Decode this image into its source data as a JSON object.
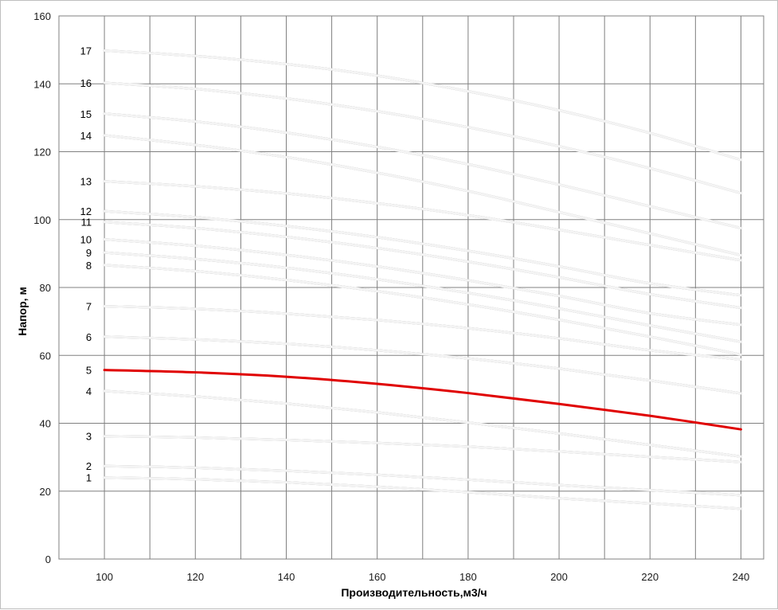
{
  "chart_data": {
    "type": "line",
    "title": "",
    "xlabel": "Производительность,м3/ч",
    "ylabel": "Напор, м",
    "xlim": [
      90,
      245
    ],
    "ylim": [
      0,
      160
    ],
    "x_ticks": [
      100,
      120,
      140,
      160,
      180,
      200,
      220,
      240
    ],
    "y_ticks": [
      0,
      20,
      40,
      60,
      80,
      100,
      120,
      140,
      160
    ],
    "grid": true,
    "highlight_color": "#e00000",
    "curve_color": "#c8c8c8",
    "x": [
      100,
      120,
      140,
      160,
      180,
      200,
      220,
      240
    ],
    "series": [
      {
        "name": "1",
        "values": [
          24.0,
          23.5,
          22.6,
          21.3,
          19.7,
          17.9,
          16.4,
          14.8
        ]
      },
      {
        "name": "2",
        "values": [
          27.4,
          26.9,
          26.0,
          24.8,
          23.4,
          21.8,
          20.3,
          18.8
        ]
      },
      {
        "name": "3",
        "values": [
          36.2,
          35.8,
          35.1,
          34.2,
          33.1,
          31.7,
          30.1,
          28.6
        ]
      },
      {
        "name": "4",
        "values": [
          49.5,
          47.9,
          45.8,
          43.2,
          40.2,
          37.0,
          33.6,
          30.2
        ]
      },
      {
        "name": "5",
        "values": [
          55.7,
          55.0,
          53.7,
          51.6,
          48.9,
          45.7,
          42.2,
          38.2
        ],
        "highlight": true
      },
      {
        "name": "6",
        "values": [
          65.5,
          64.7,
          63.4,
          61.5,
          59.1,
          56.1,
          52.6,
          48.8
        ]
      },
      {
        "name": "7",
        "values": [
          74.5,
          73.7,
          72.3,
          70.4,
          68.0,
          65.0,
          61.5,
          58.8
        ]
      },
      {
        "name": "8",
        "values": [
          86.6,
          84.8,
          82.2,
          78.9,
          75.0,
          70.5,
          65.5,
          60.2
        ]
      },
      {
        "name": "9",
        "values": [
          90.3,
          88.4,
          85.8,
          82.4,
          78.4,
          73.8,
          68.8,
          64.0
        ]
      },
      {
        "name": "10",
        "values": [
          94.2,
          92.3,
          89.6,
          86.2,
          82.1,
          77.5,
          72.4,
          69.0
        ]
      },
      {
        "name": "11",
        "values": [
          99.3,
          97.5,
          94.9,
          91.6,
          87.6,
          83.0,
          78.0,
          74.0
        ]
      },
      {
        "name": "12",
        "values": [
          102.5,
          100.7,
          98.1,
          94.8,
          90.8,
          86.2,
          81.2,
          77.7
        ]
      },
      {
        "name": "13",
        "values": [
          111.3,
          109.8,
          107.7,
          104.8,
          101.3,
          97.0,
          92.5,
          88.0
        ]
      },
      {
        "name": "14",
        "values": [
          124.8,
          122.0,
          118.4,
          113.8,
          108.4,
          102.2,
          95.9,
          89.5
        ]
      },
      {
        "name": "15",
        "values": [
          131.2,
          128.9,
          125.6,
          121.4,
          116.3,
          110.3,
          103.9,
          97.5
        ]
      },
      {
        "name": "16",
        "values": [
          140.3,
          138.5,
          135.7,
          131.9,
          127.2,
          121.6,
          115.1,
          107.8
        ]
      },
      {
        "name": "17",
        "values": [
          149.8,
          148.2,
          145.8,
          142.4,
          137.8,
          132.2,
          125.5,
          117.6
        ]
      }
    ]
  }
}
